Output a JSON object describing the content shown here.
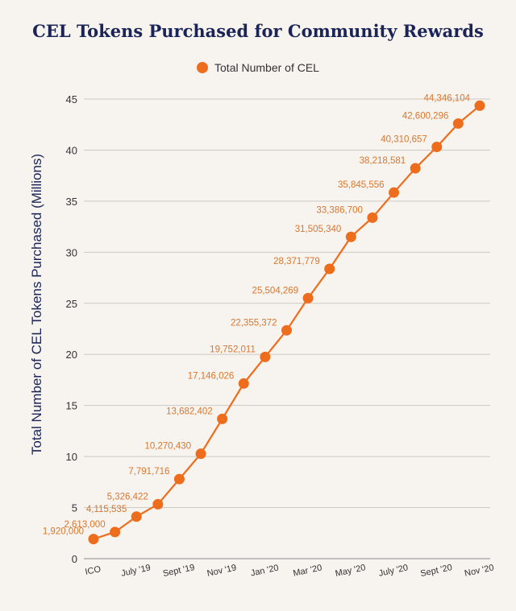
{
  "chart_data": {
    "type": "line",
    "title": "CEL Tokens Purchased for Community Rewards",
    "ylabel": "Total Number of CEL Tokens Purchased (Millions)",
    "xlabel": "",
    "ylim": [
      0,
      45
    ],
    "yticks": [
      "0",
      "5",
      "10",
      "15",
      "20",
      "25",
      "30",
      "35",
      "40",
      "45"
    ],
    "grid": true,
    "legend_position": "top-center",
    "series": [
      {
        "name": "Total Number of CEL",
        "color": "#ee6d1c",
        "values": [
          1.92,
          2.613,
          4.115535,
          5.326422,
          7.791716,
          10.27043,
          13.682402,
          17.146026,
          19.752011,
          22.355372,
          25.504269,
          28.371779,
          31.50534,
          33.3867,
          35.845556,
          38.218581,
          40.310657,
          42.600296,
          44.346104
        ],
        "labels": [
          "1,920,000",
          "2,613,000",
          "4,115,535",
          "5,326,422",
          "7,791,716",
          "10,270,430",
          "13,682,402",
          "17,146,026",
          "19,752,011",
          "22,355,372",
          "25,504,269",
          "28,371,779",
          "31,505,340",
          "33,386,700",
          "35,845,556",
          "38,218,581",
          "40,310,657",
          "42,600,296",
          "44,346,104"
        ]
      }
    ],
    "x_tick_labels": [
      {
        "i": 0,
        "text": "ICO"
      },
      {
        "i": 2,
        "text": "July '19"
      },
      {
        "i": 4,
        "text": "Sept '19"
      },
      {
        "i": 6,
        "text": "Nov '19"
      },
      {
        "i": 8,
        "text": "Jan '20"
      },
      {
        "i": 10,
        "text": "Mar '20"
      },
      {
        "i": 12,
        "text": "May '20"
      },
      {
        "i": 14,
        "text": "July '20"
      },
      {
        "i": 16,
        "text": "Sept '20"
      },
      {
        "i": 18,
        "text": "Nov '20"
      }
    ]
  }
}
